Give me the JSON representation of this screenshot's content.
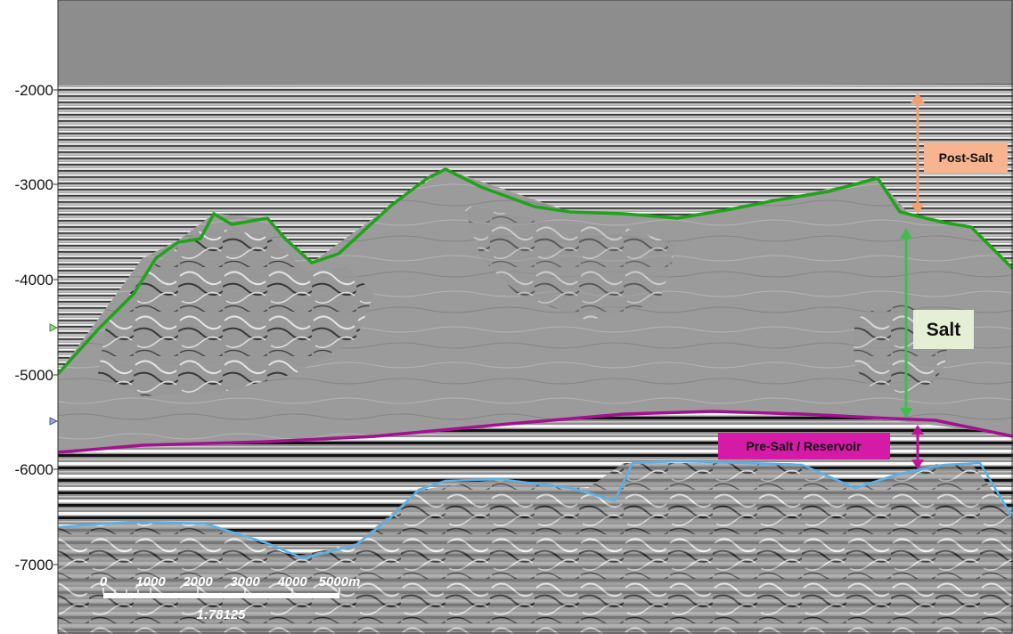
{
  "depth_axis": {
    "tick_labels": [
      "-2000",
      "-3000",
      "-4000",
      "-5000",
      "-6000",
      "-7000"
    ],
    "tick_values": [
      -2000,
      -3000,
      -4000,
      -5000,
      -6000,
      -7000
    ]
  },
  "annotations": {
    "post_salt": {
      "label": "Post-Salt",
      "color": "#f7b48e",
      "arrow_color": "#f2a06e"
    },
    "salt": {
      "label": "Salt",
      "color": "#e4efd6",
      "arrow_color": "#3cbf4a"
    },
    "pre_salt": {
      "label": "Pre-Salt / Reservoir",
      "color": "#d61aa8",
      "arrow_color": "#c0139a"
    }
  },
  "horizons": {
    "top_salt": {
      "color": "#1fa319"
    },
    "base_salt": {
      "color": "#a3118f"
    },
    "reservoir_base": {
      "color": "#5ab0e8"
    }
  },
  "scale_bar": {
    "tick_labels": [
      "0",
      "1000",
      "2000",
      "3000",
      "4000",
      "5000m"
    ],
    "ratio": "1:78125"
  },
  "colors": {
    "water_column": "#8d8d8d",
    "seismic_mid": "#9a9a9a"
  }
}
